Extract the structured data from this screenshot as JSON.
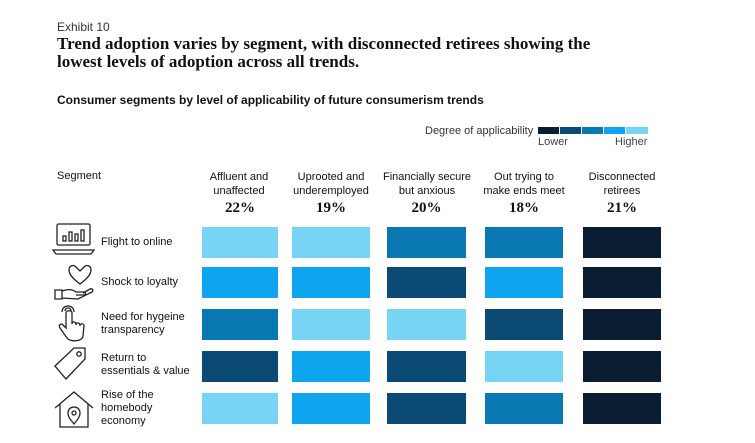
{
  "exhibit": "Exhibit 10",
  "headline_line1": "Trend adoption varies by segment, with disconnected retirees showing the",
  "headline_line2": "lowest levels of adoption across all trends.",
  "subtitle": "Consumer segments by level of applicability of future consumerism trends",
  "legend": {
    "title": "Degree of applicability",
    "low": "Lower",
    "high": "Higher",
    "scale_colors": [
      "#0b1d33",
      "#0a4a74",
      "#0a78b3",
      "#0ea4ee",
      "#78d4f5"
    ]
  },
  "segment_header": "Segment",
  "chart_data": {
    "type": "heatmap",
    "title": "Consumer segments by level of applicability of future consumerism trends",
    "columns": [
      {
        "line1": "Affluent and",
        "line2": "unaffected",
        "share": "22%"
      },
      {
        "line1": "Uprooted and",
        "line2": "underemployed",
        "share": "19%"
      },
      {
        "line1": "Financially secure",
        "line2": "but anxious",
        "share": "20%"
      },
      {
        "line1": "Out trying to",
        "line2": "make ends meet",
        "share": "18%"
      },
      {
        "line1": "Disconnected",
        "line2": "retirees",
        "share": "21%"
      }
    ],
    "rows": [
      {
        "label_lines": [
          "Flight to online"
        ],
        "icon": "laptop-chart-icon"
      },
      {
        "label_lines": [
          "Shock to loyalty"
        ],
        "icon": "heart-hand-icon"
      },
      {
        "label_lines": [
          "Need for hygeine",
          "transparency"
        ],
        "icon": "touch-hand-icon"
      },
      {
        "label_lines": [
          "Return to",
          "essentials & value"
        ],
        "icon": "price-tag-icon"
      },
      {
        "label_lines": [
          "Rise of the",
          "homebody",
          "economy"
        ],
        "icon": "house-pin-icon"
      }
    ],
    "scale": "1 = lower applicability, 5 = higher applicability",
    "values": [
      [
        5,
        5,
        3,
        3,
        1
      ],
      [
        4,
        4,
        2,
        4,
        1
      ],
      [
        3,
        5,
        5,
        2,
        1
      ],
      [
        2,
        4,
        2,
        5,
        1
      ],
      [
        5,
        4,
        2,
        3,
        1
      ]
    ]
  }
}
